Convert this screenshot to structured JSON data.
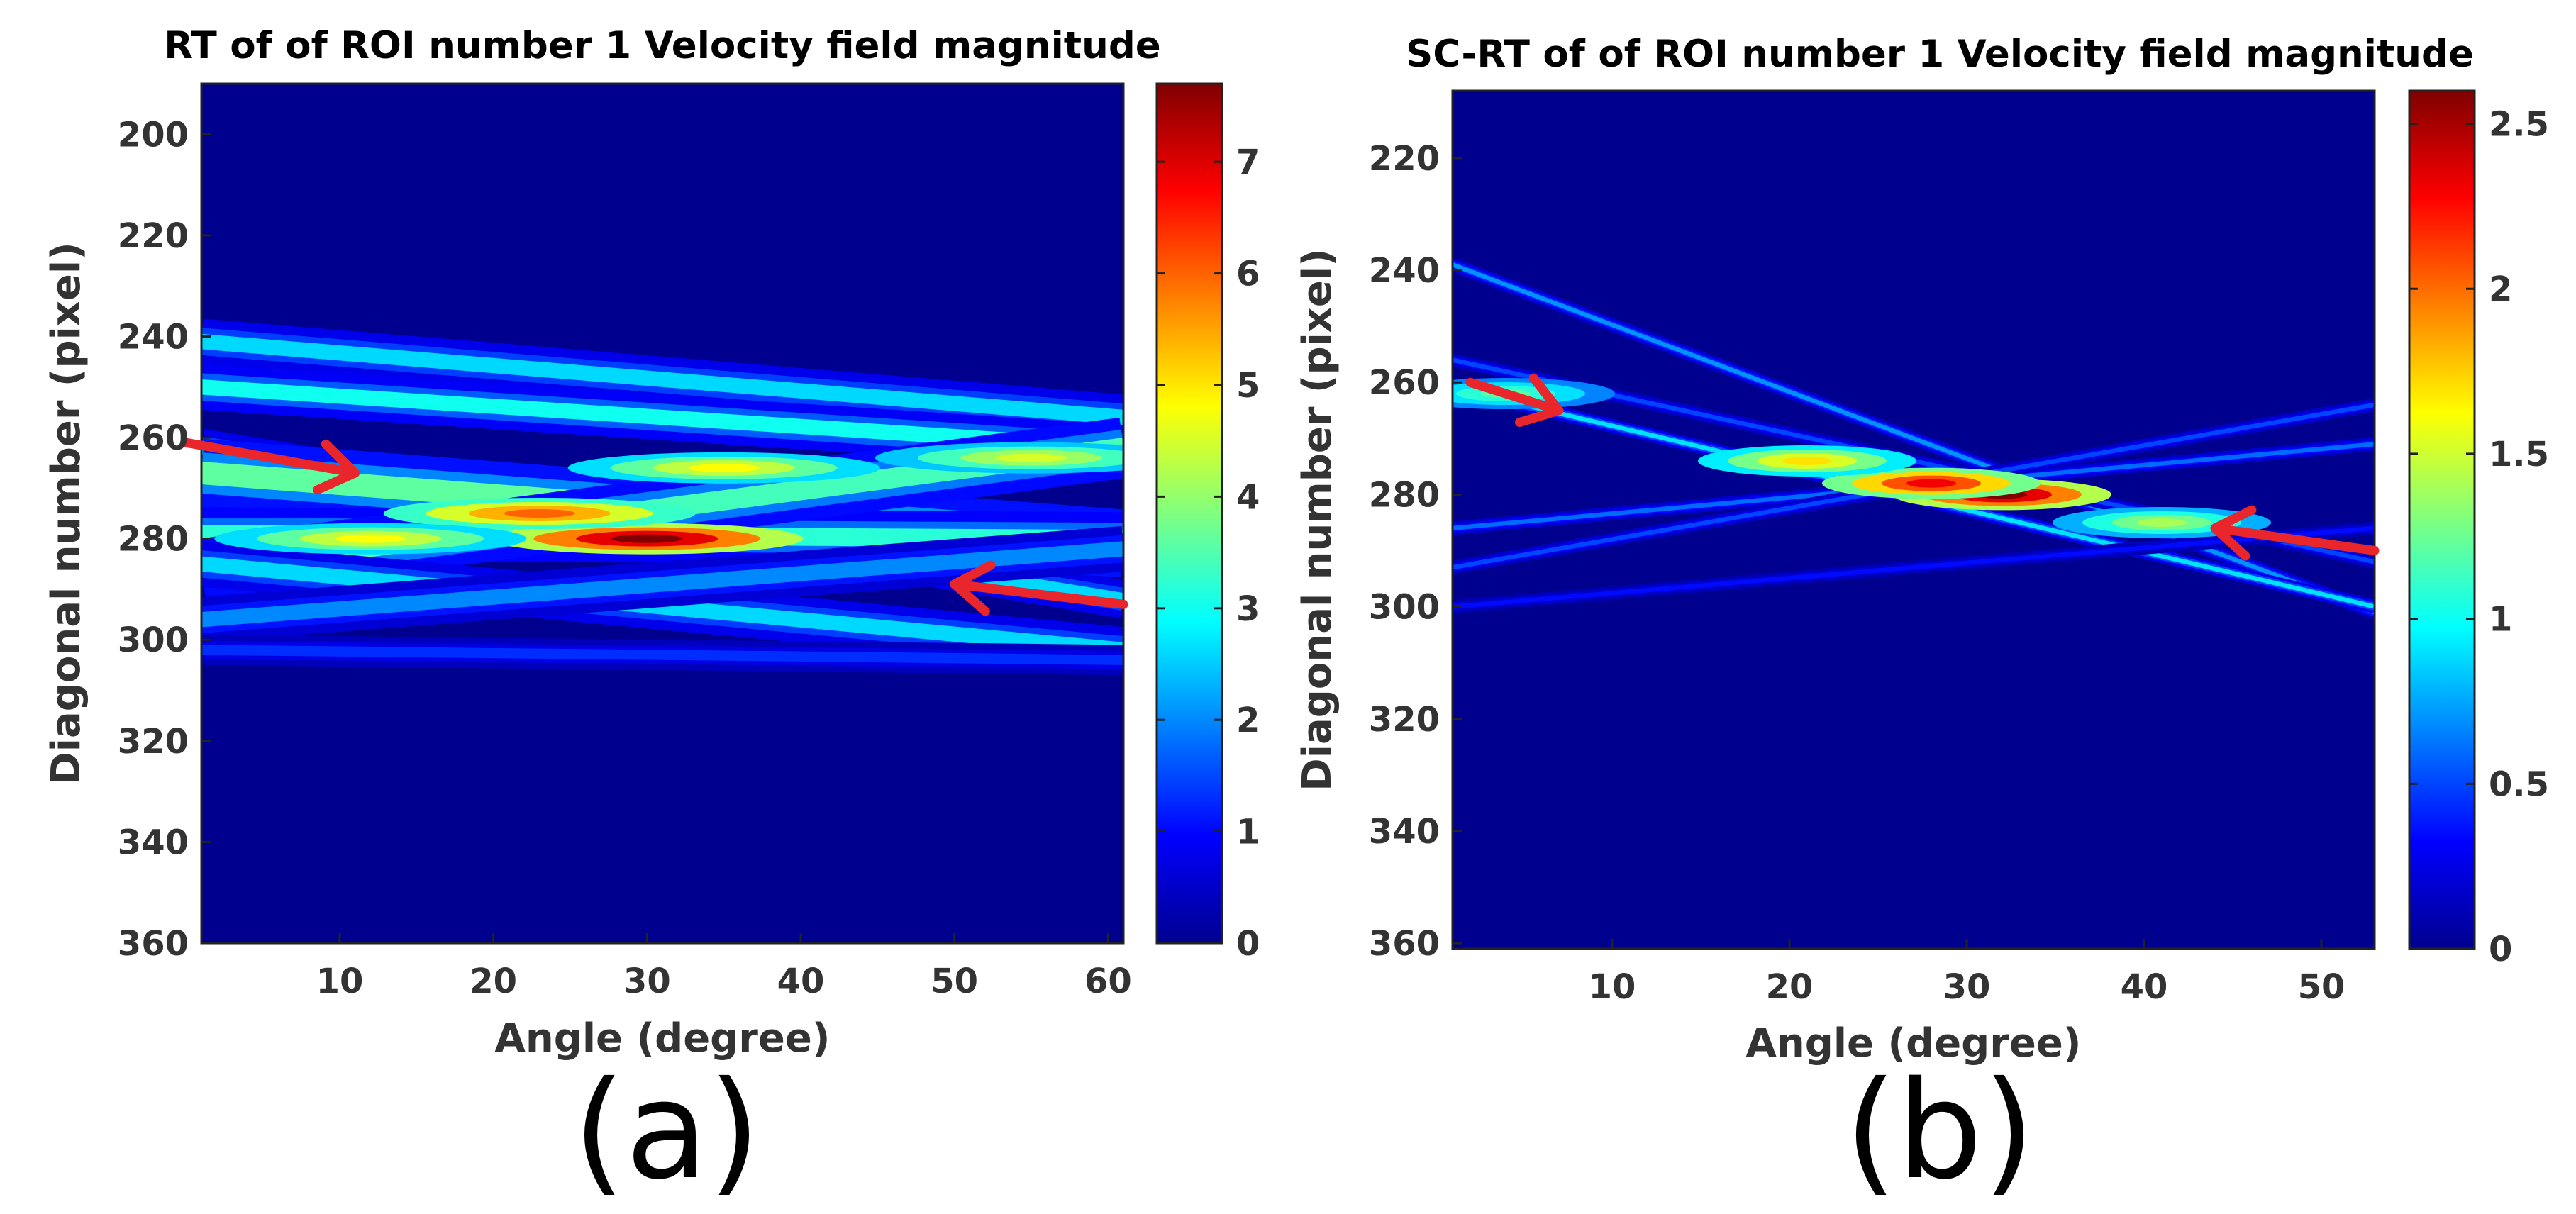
{
  "chart_data": [
    {
      "type": "heatmap",
      "panel_label": "(a)",
      "title": "RT of of ROI number 1 Velocity field magnitude",
      "xlabel": "Angle (degree)",
      "ylabel": "Diagonal number (pixel)",
      "xlim": [
        1,
        61
      ],
      "ylim": [
        190,
        360
      ],
      "xticks": [
        10,
        20,
        30,
        40,
        50,
        60
      ],
      "yticks": [
        200,
        220,
        240,
        260,
        280,
        300,
        320,
        340,
        360
      ],
      "y_reversed": true,
      "colormap": "jet",
      "colorbar": {
        "min": 0,
        "max": 7.7,
        "ticks": [
          0,
          1,
          2,
          3,
          4,
          5,
          6,
          7
        ]
      },
      "bands": [
        {
          "y_start": 241,
          "y_end": 256,
          "width": 3.0,
          "peak": 2.6
        },
        {
          "y_start": 250,
          "y_end": 262,
          "width": 3.0,
          "peak": 3.0
        },
        {
          "y_start": 262,
          "y_end": 292,
          "width": 2.5,
          "peak": 2.6
        },
        {
          "y_start": 267,
          "y_end": 281,
          "width": 4.5,
          "peak": 3.6
        },
        {
          "y_start": 279,
          "y_end": 280,
          "width": 3.5,
          "peak": 3.2
        },
        {
          "y_start": 286,
          "y_end": 262,
          "width": 4.0,
          "peak": 3.4
        },
        {
          "y_start": 285,
          "y_end": 302,
          "width": 3.0,
          "peak": 2.6
        },
        {
          "y_start": 296,
          "y_end": 282,
          "width": 3.0,
          "peak": 2.0
        },
        {
          "y_start": 302,
          "y_end": 304,
          "width": 2.0,
          "peak": 1.3
        }
      ],
      "hotspots": [
        {
          "x": 30,
          "y": 280,
          "value": 7.7
        },
        {
          "x": 23,
          "y": 275,
          "value": 6.0
        },
        {
          "x": 35,
          "y": 266,
          "value": 4.8
        },
        {
          "x": 55,
          "y": 264,
          "value": 4.5
        },
        {
          "x": 12,
          "y": 280,
          "value": 4.8
        }
      ],
      "annotations": [
        {
          "type": "arrow",
          "tail": [
            0,
            261
          ],
          "head": [
            11,
            267
          ],
          "color": "#e8262b"
        },
        {
          "type": "arrow",
          "tail": [
            61,
            293
          ],
          "head": [
            50,
            289
          ],
          "color": "#e8262b"
        }
      ]
    },
    {
      "type": "heatmap",
      "panel_label": "(b)",
      "title": "SC-RT of of ROI number 1 Velocity field magnitude",
      "xlabel": "Angle (degree)",
      "ylabel": "Diagonal number (pixel)",
      "xlim": [
        1,
        53
      ],
      "ylim": [
        208,
        361
      ],
      "xticks": [
        10,
        20,
        30,
        40,
        50
      ],
      "yticks": [
        220,
        240,
        260,
        280,
        300,
        320,
        340,
        360
      ],
      "y_reversed": true,
      "colormap": "jet",
      "colorbar": {
        "min": 0,
        "max": 2.6,
        "ticks": [
          0,
          0.5,
          1,
          1.5,
          2,
          2.5
        ]
      },
      "bands": [
        {
          "y_start": 239,
          "y_end": 301,
          "width": 0.8,
          "peak": 0.7
        },
        {
          "y_start": 261,
          "y_end": 300,
          "width": 0.8,
          "peak": 0.9
        },
        {
          "y_start": 256,
          "y_end": 292,
          "width": 0.8,
          "peak": 0.5
        },
        {
          "y_start": 286,
          "y_end": 271,
          "width": 0.8,
          "peak": 0.6
        },
        {
          "y_start": 293,
          "y_end": 264,
          "width": 0.8,
          "peak": 0.5
        },
        {
          "y_start": 300,
          "y_end": 286,
          "width": 0.8,
          "peak": 0.35
        }
      ],
      "hotspots": [
        {
          "x": 32,
          "y": 280,
          "value": 2.6
        },
        {
          "x": 28,
          "y": 278,
          "value": 2.3
        },
        {
          "x": 21,
          "y": 274,
          "value": 1.7
        },
        {
          "x": 41,
          "y": 285,
          "value": 1.4
        },
        {
          "x": 4,
          "y": 262,
          "value": 1.2
        }
      ],
      "annotations": [
        {
          "type": "arrow",
          "tail": [
            2,
            260
          ],
          "head": [
            7,
            265
          ],
          "color": "#e8262b"
        },
        {
          "type": "arrow",
          "tail": [
            53,
            290
          ],
          "head": [
            44,
            286
          ],
          "color": "#e8262b"
        }
      ]
    }
  ]
}
